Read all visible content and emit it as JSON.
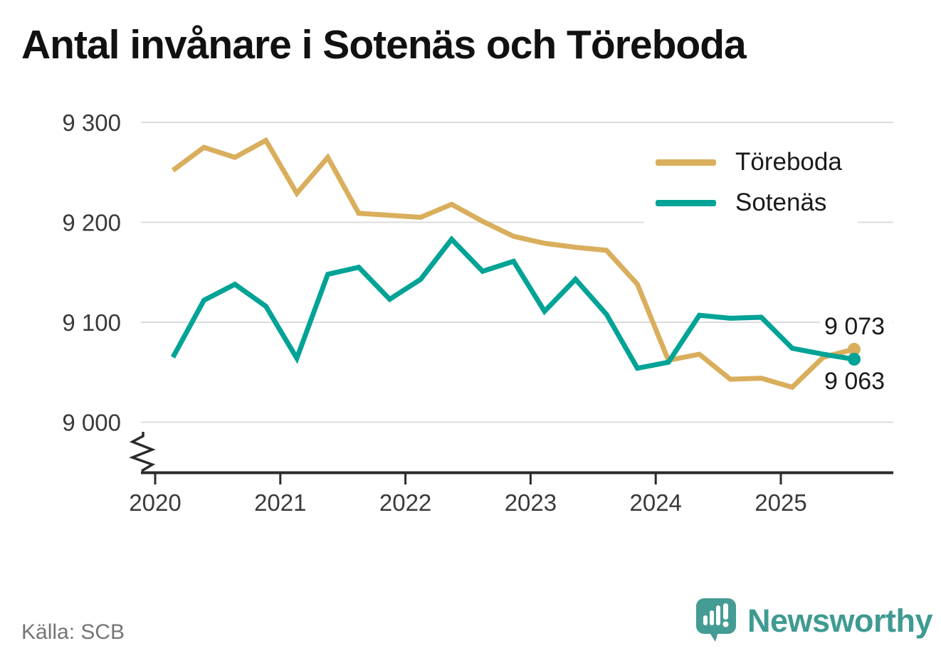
{
  "title": "Antal invånare i Sotenäs och Töreboda",
  "footer": {
    "source": "Källa: SCB",
    "logo_text": "Newsworthy"
  },
  "chart_data": {
    "type": "line",
    "title": "Antal invånare i Sotenäs och Töreboda",
    "categories": [
      "2020-K1",
      "2020-K2",
      "2020-K3",
      "2020-K4",
      "2021-K1",
      "2021-K2",
      "2021-K3",
      "2021-K4",
      "2022-K1",
      "2022-K2",
      "2022-K3",
      "2022-K4",
      "2023-K1",
      "2023-K2",
      "2023-K3",
      "2023-K4",
      "2024-K1",
      "2024-K2",
      "2024-K3",
      "2024-K4",
      "2025-K1",
      "2025-K2",
      "2025-K3"
    ],
    "series": [
      {
        "name": "Töreboda",
        "color": "#d9ae5c",
        "values": [
          9252,
          9275,
          9265,
          9282,
          9229,
          9265,
          9209,
          9207,
          9205,
          9218,
          9201,
          9186,
          9179,
          9175,
          9172,
          9138,
          9062,
          9068,
          9043,
          9044,
          9035,
          9065,
          9073
        ],
        "end_label": "9 073"
      },
      {
        "name": "Sotenäs",
        "color": "#00a396",
        "values": [
          9065,
          9122,
          9138,
          9116,
          9064,
          9148,
          9155,
          9123,
          9143,
          9183,
          9151,
          9161,
          9111,
          9143,
          9108,
          9054,
          9060,
          9107,
          9104,
          9105,
          9074,
          9068,
          9063
        ],
        "end_label": "9 063"
      }
    ],
    "y_ticks": [
      9300,
      9200,
      9100,
      9000
    ],
    "y_tick_labels": [
      "9 300",
      "9 200",
      "9 100",
      "9 000"
    ],
    "x_tick_labels": [
      "2020",
      "2021",
      "2022",
      "2023",
      "2024",
      "2025"
    ],
    "ylim": [
      8990,
      9310
    ],
    "axis_break": true,
    "grid": "horizontal",
    "legend_position": "top-right"
  }
}
